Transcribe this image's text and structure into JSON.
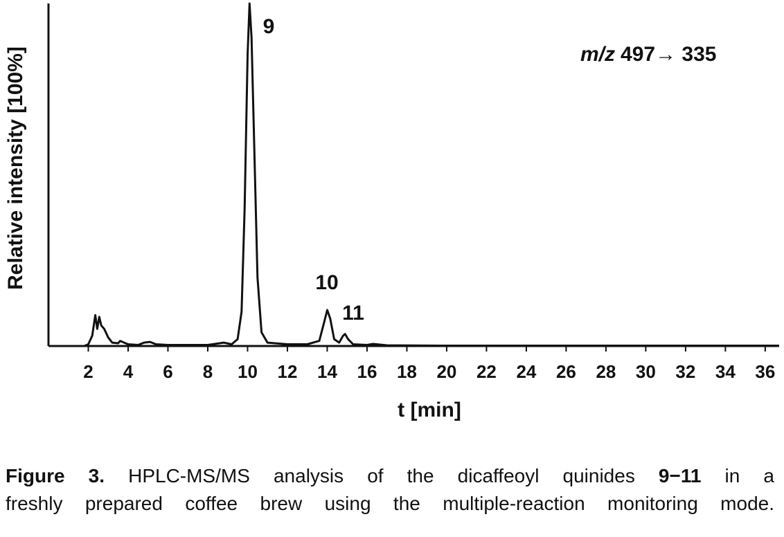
{
  "chart_data": {
    "type": "line",
    "y_label": "Relative intensity [100%]",
    "x_label": "t [min]",
    "transition_italic": "m/z",
    "transition": "497→ 335",
    "peak_labels": [
      "9",
      "10",
      "11"
    ],
    "color": "#111111",
    "xlim": [
      0,
      36.7
    ],
    "xticks": [
      2,
      4,
      6,
      8,
      10,
      12,
      14,
      16,
      18,
      20,
      22,
      24,
      26,
      28,
      30,
      32,
      34,
      36
    ],
    "ylim": [
      0,
      100
    ],
    "x": [
      1.8,
      2.0,
      2.2,
      2.35,
      2.45,
      2.55,
      2.65,
      2.8,
      3.0,
      3.2,
      3.5,
      3.6,
      3.8,
      4.0,
      4.5,
      4.8,
      5.1,
      5.4,
      6,
      7,
      8,
      8.8,
      9.2,
      9.5,
      9.7,
      9.85,
      10.0,
      10.1,
      10.2,
      10.35,
      10.5,
      10.7,
      11,
      12,
      13,
      13.6,
      13.85,
      14.0,
      14.15,
      14.35,
      14.6,
      14.8,
      14.9,
      15.05,
      15.3,
      16,
      16.3,
      17,
      20,
      25,
      30,
      36.7
    ],
    "values": [
      0,
      0.5,
      3,
      9,
      5,
      8.5,
      6,
      5,
      2.5,
      1,
      0.8,
      1.5,
      1,
      0.5,
      0.3,
      1,
      1.2,
      0.5,
      0.3,
      0.3,
      0.3,
      1,
      0.5,
      2,
      10,
      40,
      85,
      100,
      90,
      55,
      20,
      4,
      1,
      0.5,
      0.5,
      1.5,
      7,
      10.5,
      8,
      2,
      1,
      3,
      3.5,
      2,
      0.5,
      0.3,
      0.6,
      0.2,
      0.1,
      0.1,
      0.1,
      0.1
    ]
  },
  "caption": {
    "label": "Figure 3.",
    "text": "HPLC-MS/MS analysis of the dicaffeoyl quinides",
    "compounds": "9−11",
    "text_end": "in a",
    "line2": "freshly prepared coffee brew using the multiple-reaction monitoring mode."
  }
}
